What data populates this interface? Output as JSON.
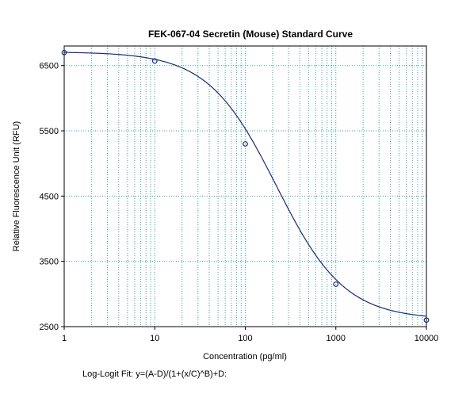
{
  "chart_data": {
    "type": "scatter",
    "title": "FEK-067-04 Secretin (Mouse) Standard Curve",
    "xlabel": "Concentration (pg/ml)",
    "ylabel": "Relative Fluorescence Unit (RFU)",
    "x_scale": "log",
    "xlim": [
      1,
      10000
    ],
    "ylim": [
      2500,
      6800
    ],
    "x_ticks": [
      "1",
      "10",
      "100",
      "1000",
      "10000"
    ],
    "y_ticks": [
      "2500",
      "3500",
      "4500",
      "5500",
      "6500"
    ],
    "grid": true,
    "series": [
      {
        "points": [
          {
            "x": 1,
            "y": 6700
          },
          {
            "x": 10,
            "y": 6570
          },
          {
            "x": 100,
            "y": 5300
          },
          {
            "x": 1000,
            "y": 3150
          },
          {
            "x": 10000,
            "y": 2600
          }
        ]
      }
    ],
    "fit": {
      "A": 6710,
      "B": 1.15,
      "C": 220,
      "D": 2610
    },
    "colors": {
      "grid": "#3a9fb0",
      "curve": "#1a2a7a",
      "marker": "#1a2a7a"
    }
  },
  "footnote": "Log-Logit Fit: y=(A-D)/(1+(x/C)^B)+D:"
}
